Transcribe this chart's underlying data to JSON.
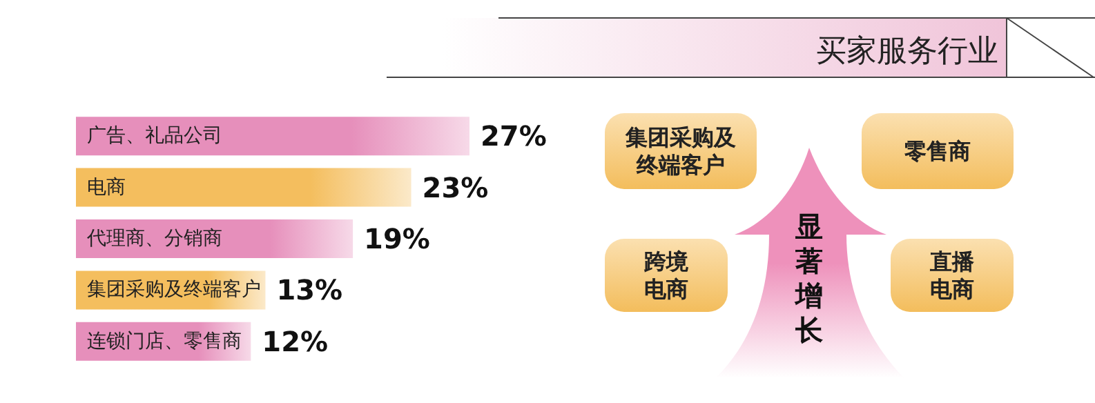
{
  "chart_data": {
    "type": "bar",
    "orientation": "horizontal",
    "title": "买家服务行业",
    "categories": [
      "广告、礼品公司",
      "电商",
      "代理商、分销商",
      "集团采购及终端客户",
      "连锁门店、零售商"
    ],
    "values": [
      27,
      23,
      19,
      13,
      12
    ],
    "value_labels": [
      "27%",
      "23%",
      "19%",
      "13%",
      "12%"
    ],
    "colors": [
      "#e68fbb",
      "#f4be5e",
      "#e68fbb",
      "#f4be5e",
      "#e68fbb"
    ],
    "annotations": [
      "集团采购及终端客户",
      "零售商",
      "跨境电商",
      "直播电商",
      "显著增长"
    ]
  }
}
